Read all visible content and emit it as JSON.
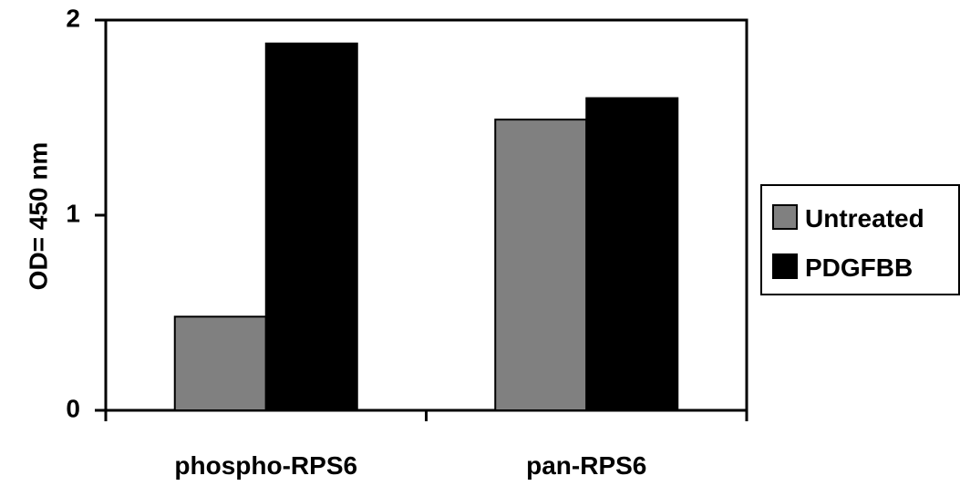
{
  "chart_data": {
    "type": "bar",
    "categories": [
      "phospho-RPS6",
      "pan-RPS6"
    ],
    "series": [
      {
        "name": "Untreated",
        "values": [
          0.48,
          1.49
        ],
        "color": "#808080"
      },
      {
        "name": "PDGFBB",
        "values": [
          1.88,
          1.6
        ],
        "color": "#000000"
      }
    ],
    "xlabel": "",
    "ylabel": "OD= 450 nm",
    "ylim": [
      0,
      2
    ],
    "yticks": [
      0,
      1,
      2
    ],
    "ytick_labels": [
      "0",
      "1",
      "2"
    ],
    "grid": false,
    "legend_position": "right"
  }
}
